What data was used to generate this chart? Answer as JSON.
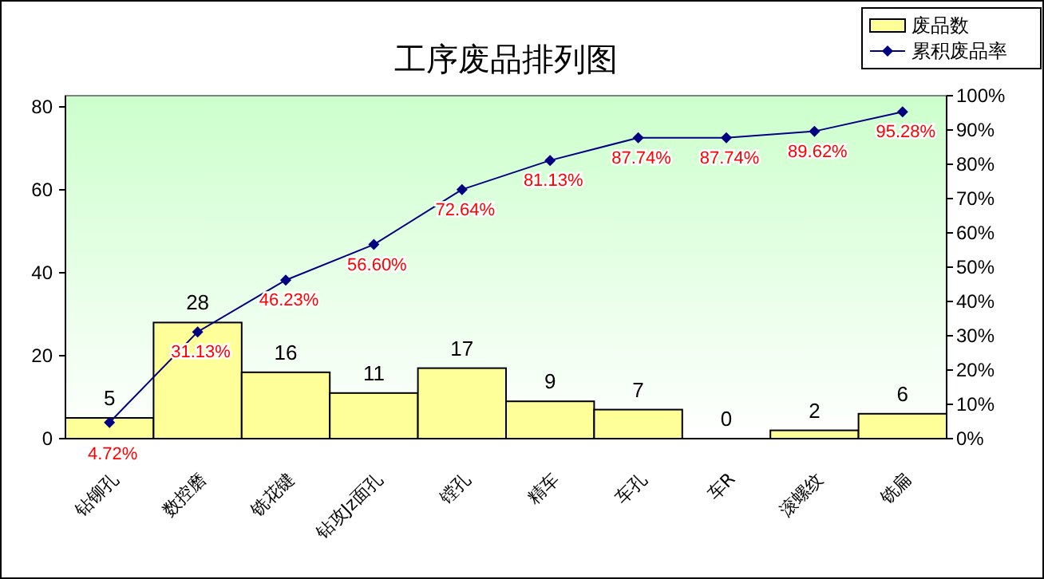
{
  "chart_data": {
    "type": "bar",
    "title": "工序废品排列图",
    "categories": [
      "钻铆孔",
      "数控磨",
      "铣花键",
      "钻攻Jz面孔",
      "镗孔",
      "精车",
      "车孔",
      "车R",
      "滚螺纹",
      "铣扁"
    ],
    "series": [
      {
        "name": "废品数",
        "color": "#ffff99",
        "values": [
          5,
          28,
          16,
          11,
          17,
          9,
          7,
          0,
          2,
          6
        ]
      },
      {
        "name": "累积废品率",
        "type": "line",
        "axis": "y2",
        "color": "#000080",
        "values": [
          4.72,
          31.13,
          46.23,
          56.6,
          72.64,
          81.13,
          87.74,
          87.74,
          89.62,
          95.28
        ],
        "value_labels": [
          "4.72%",
          "31.13%",
          "46.23%",
          "56.60%",
          "72.64%",
          "81.13%",
          "87.74%",
          "87.74%",
          "89.62%",
          "95.28%"
        ]
      }
    ],
    "ylim": [
      0,
      82.7
    ],
    "yticks": [
      0,
      20,
      40,
      60,
      80
    ],
    "y2lim": [
      0,
      100
    ],
    "y2ticks": [
      {
        "value": 0,
        "label": "0%"
      },
      {
        "value": 10,
        "label": "10%"
      },
      {
        "value": 20,
        "label": "20%"
      },
      {
        "value": 30,
        "label": "30%"
      },
      {
        "value": 40,
        "label": "40%"
      },
      {
        "value": 50,
        "label": "50%"
      },
      {
        "value": 60,
        "label": "60%"
      },
      {
        "value": 70,
        "label": "70%"
      },
      {
        "value": 80,
        "label": "80%"
      },
      {
        "value": 90,
        "label": "90%"
      },
      {
        "value": 100,
        "label": "100%"
      }
    ],
    "data_labels": true,
    "marker": "diamond",
    "legend": "top right",
    "grid": false
  }
}
